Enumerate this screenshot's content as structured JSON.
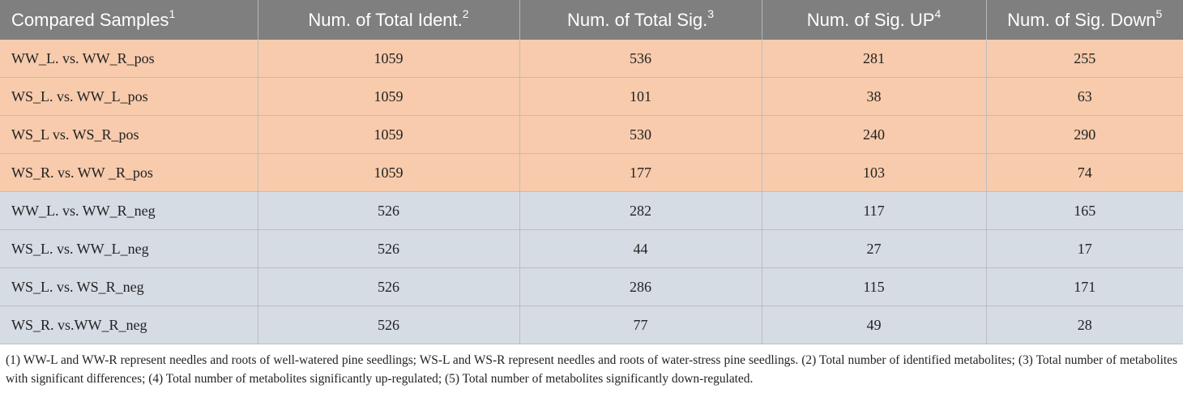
{
  "table": {
    "headers": [
      {
        "text": "Compared Samples",
        "sup": "1"
      },
      {
        "text": "Num. of Total Ident.",
        "sup": "2"
      },
      {
        "text": "Num. of Total Sig.",
        "sup": "3"
      },
      {
        "text": "Num. of Sig. UP",
        "sup": "4"
      },
      {
        "text": "Num. of Sig. Down",
        "sup": "5"
      }
    ],
    "rows": [
      {
        "group": "pos",
        "cells": [
          "WW_L. vs. WW_R_pos",
          "1059",
          "536",
          "281",
          "255"
        ]
      },
      {
        "group": "pos",
        "cells": [
          "WS_L. vs. WW_L_pos",
          "1059",
          "101",
          "38",
          "63"
        ]
      },
      {
        "group": "pos",
        "cells": [
          "WS_L vs. WS_R_pos",
          "1059",
          "530",
          "240",
          "290"
        ]
      },
      {
        "group": "pos",
        "cells": [
          "WS_R. vs. WW _R_pos",
          "1059",
          "177",
          "103",
          "74"
        ]
      },
      {
        "group": "neg",
        "cells": [
          "WW_L. vs. WW_R_neg",
          "526",
          "282",
          "117",
          "165"
        ]
      },
      {
        "group": "neg",
        "cells": [
          "WS_L. vs. WW_L_neg",
          "526",
          "44",
          "27",
          "17"
        ]
      },
      {
        "group": "neg",
        "cells": [
          "WS_L. vs. WS_R_neg",
          "526",
          "286",
          "115",
          "171"
        ]
      },
      {
        "group": "neg",
        "cells": [
          "WS_R. vs.WW_R_neg",
          "526",
          "77",
          "49",
          "28"
        ]
      }
    ],
    "colors": {
      "header_bg": "#7f7f7f",
      "pos_row_bg": "#f7cbac",
      "neg_row_bg": "#d6dce4"
    }
  },
  "footnote": "(1) WW-L and WW-R represent needles and roots of well-watered pine seedlings; WS-L and WS-R represent needles and roots of water-stress pine seedlings. (2) Total number of identified metabolites; (3) Total number of metabolites with significant differences; (4) Total number of metabolites significantly up-regulated; (5) Total number of metabolites significantly down-regulated."
}
